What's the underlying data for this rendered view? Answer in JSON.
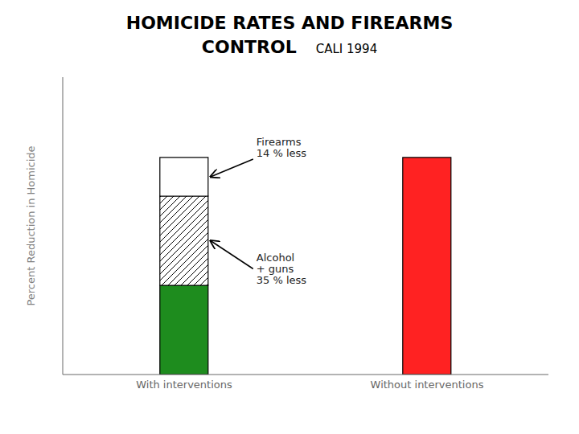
{
  "chart_data": {
    "type": "bar",
    "title": "HOMICIDE RATES AND FIREARMS\nCONTROL",
    "subtitle": "CALI 1994",
    "ylabel": "Percent Reduction in Homicide",
    "categories": [
      "With interventions",
      "Without interventions"
    ],
    "series": [
      {
        "color": "#1e8c1e",
        "values": [
          30,
          null
        ]
      },
      {
        "color": "#ffffff",
        "values": [
          30,
          null
        ]
      },
      {
        "color": "#ffffff",
        "values": [
          13,
          null
        ]
      },
      {
        "color": "#ff2222",
        "values": [
          null,
          73
        ]
      }
    ],
    "stacked": true,
    "ylim": [
      0,
      100
    ],
    "tick_labels": "x",
    "grid": false,
    "annotations": [
      "Firearms\n14 % less",
      "Alcohol\n+ guns\n35 % less"
    ]
  }
}
